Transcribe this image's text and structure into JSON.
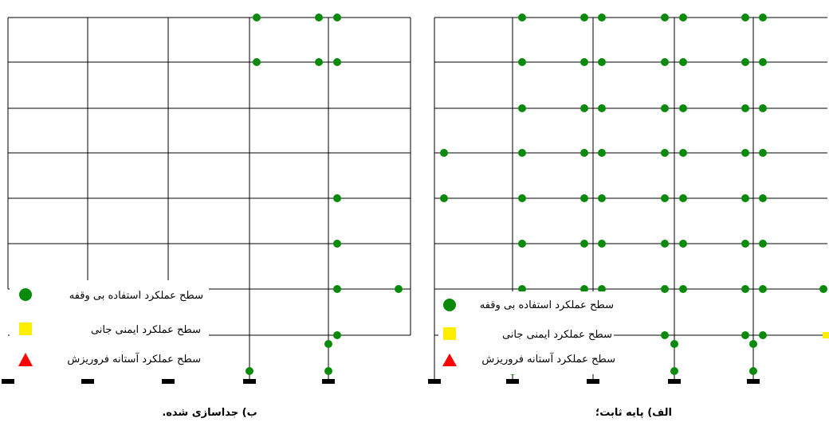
{
  "colors": {
    "frame": "#000000",
    "hinge_io": "#0a8a0a",
    "hinge_ls": "#ffee00",
    "hinge_cp": "#ff0000"
  },
  "legend": {
    "io": "سطح عملکرد استفاده بی وقفه",
    "ls": "سطح عملکرد ایمنی جانی",
    "cp": "سطح عملکرد آستانه فروریزش"
  },
  "captions": {
    "left": "ب) جداسازی شده.",
    "right": "الف) پایه ثابت؛"
  },
  "icons": {
    "io": "green-circle-icon",
    "ls": "yellow-square-icon",
    "cp": "red-triangle-icon",
    "support": "fixed-support-icon"
  }
}
